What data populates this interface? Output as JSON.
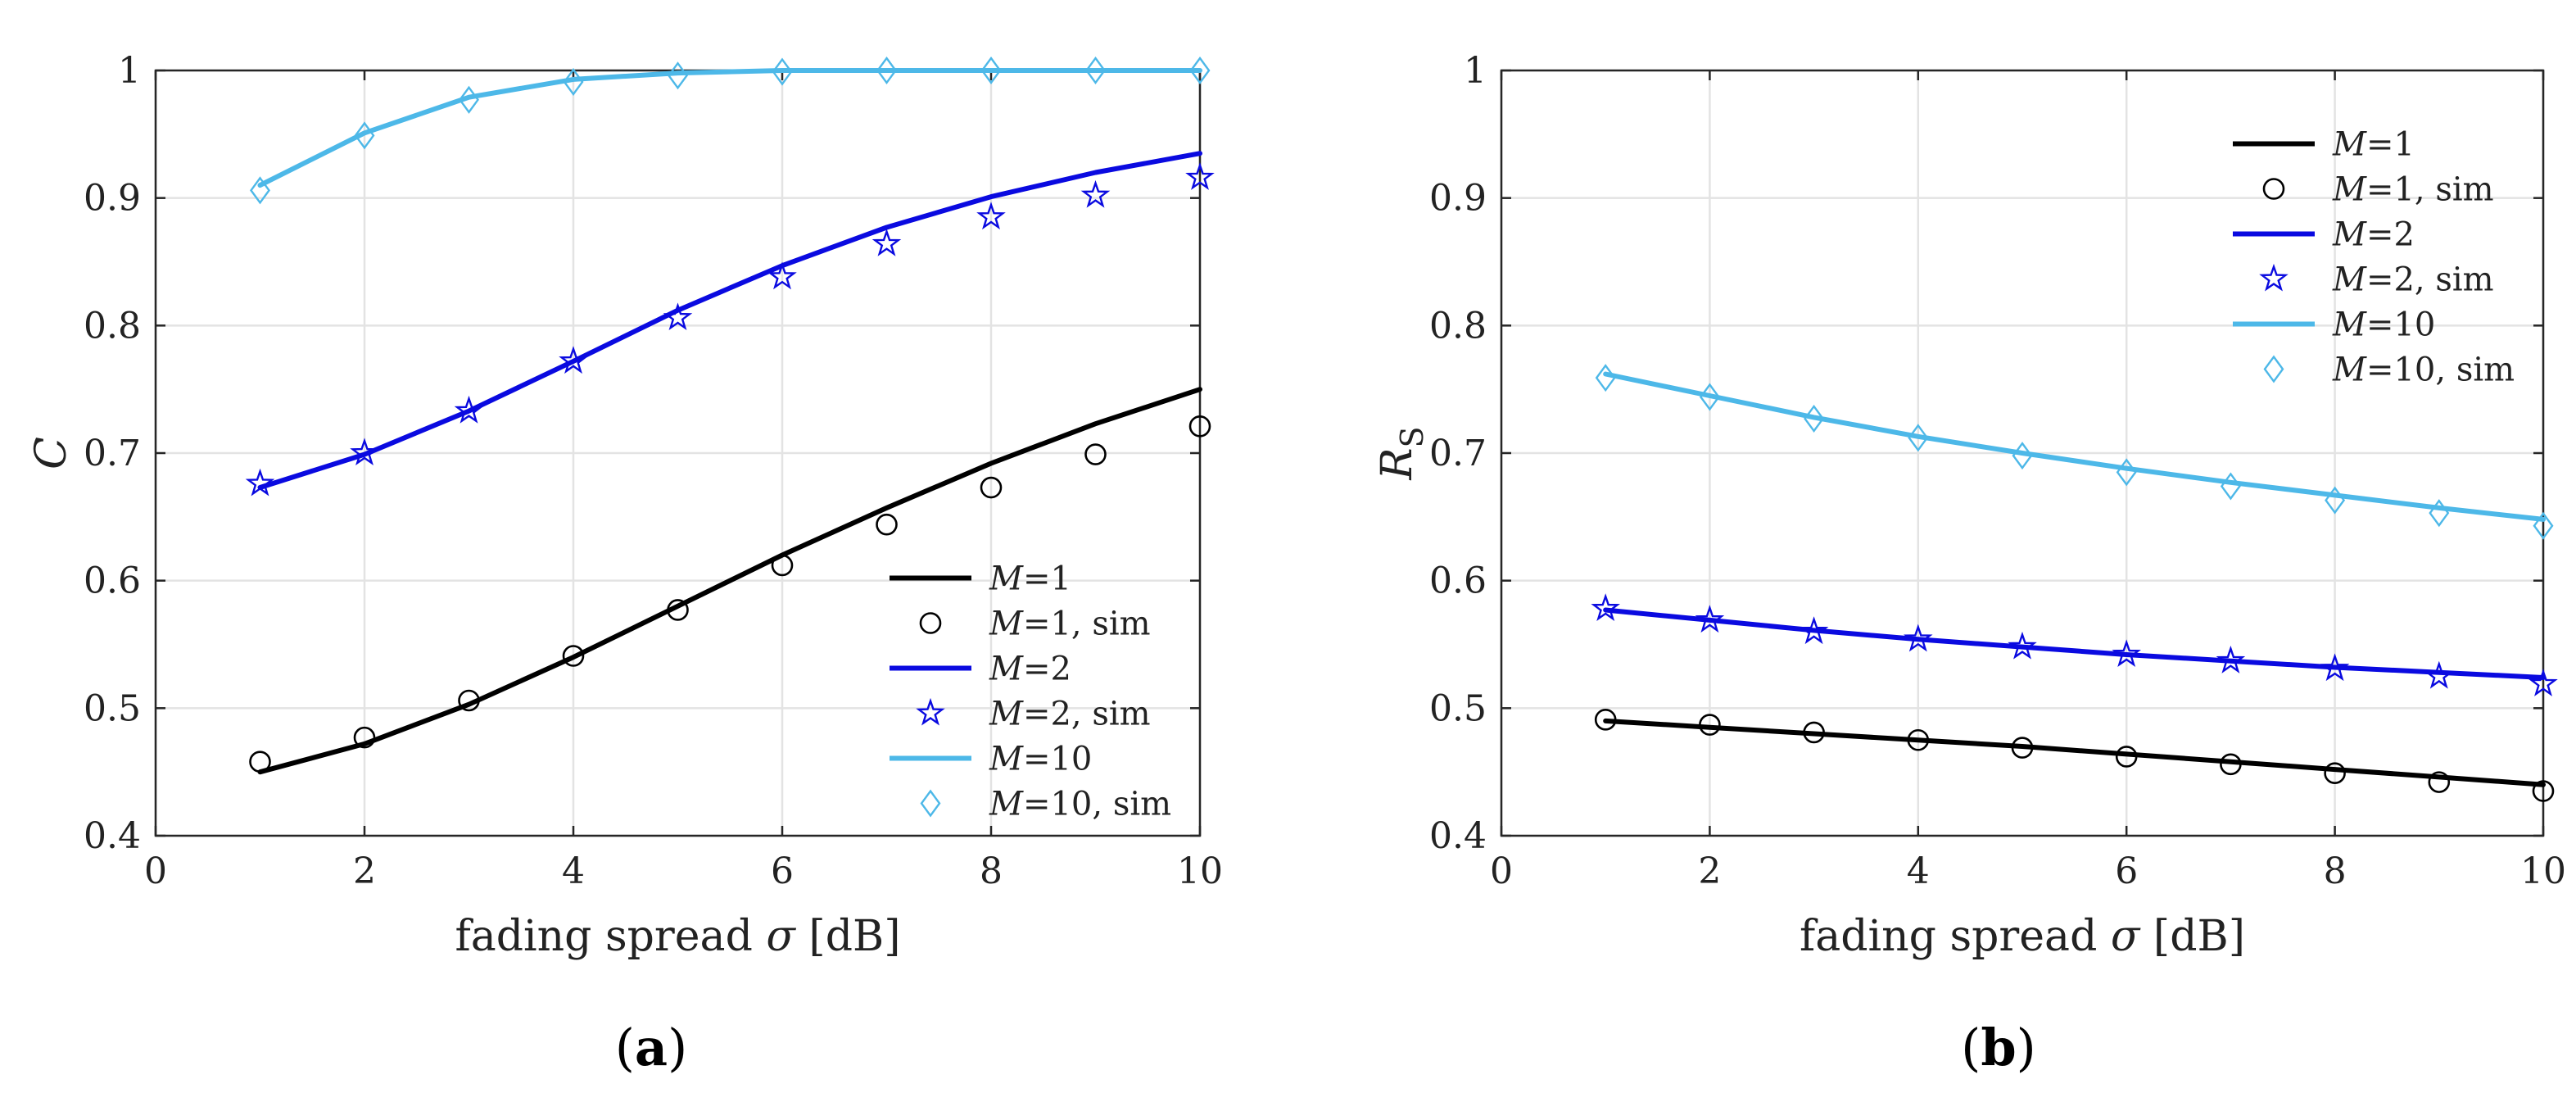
{
  "chart_data": [
    {
      "type": "line",
      "panel_label": "(a)",
      "xlabel": "fading spread σ [dB]",
      "ylabel": "C",
      "ylabel_sub": "",
      "xlim": [
        0,
        10
      ],
      "ylim": [
        0.4,
        1
      ],
      "xticks": [
        0,
        2,
        4,
        6,
        8,
        10
      ],
      "yticks": [
        0.4,
        0.5,
        0.6,
        0.7,
        0.8,
        0.9,
        1
      ],
      "ytick_labels": [
        "0.4",
        "0.5",
        "0.6",
        "0.7",
        "0.8",
        "0.9",
        "1"
      ],
      "grid": true,
      "legend_position": "bottom-right",
      "x": [
        1,
        2,
        3,
        4,
        5,
        6,
        7,
        8,
        9,
        10
      ],
      "series": [
        {
          "name": "M=1",
          "var": "M",
          "suffix": "=1",
          "kind": "line",
          "color": "#000000",
          "values": [
            0.45,
            0.472,
            0.503,
            0.54,
            0.58,
            0.62,
            0.657,
            0.692,
            0.723,
            0.75
          ]
        },
        {
          "name": "M=1, sim",
          "var": "M",
          "suffix": "=1, sim",
          "kind": "marker",
          "marker": "circle",
          "color": "#000000",
          "values": [
            0.458,
            0.477,
            0.506,
            0.541,
            0.577,
            0.612,
            0.644,
            0.673,
            0.699,
            0.721
          ]
        },
        {
          "name": "M=2",
          "var": "M",
          "suffix": "=2",
          "kind": "line",
          "color": "#0a0ae0",
          "values": [
            0.673,
            0.699,
            0.733,
            0.772,
            0.812,
            0.847,
            0.877,
            0.901,
            0.92,
            0.935
          ]
        },
        {
          "name": "M=2, sim",
          "var": "M",
          "suffix": "=2, sim",
          "kind": "marker",
          "marker": "star",
          "color": "#0a0ae0",
          "values": [
            0.676,
            0.7,
            0.733,
            0.772,
            0.806,
            0.838,
            0.864,
            0.885,
            0.902,
            0.916
          ]
        },
        {
          "name": "M=10",
          "var": "M",
          "suffix": "=10",
          "kind": "line",
          "color": "#4db8e8",
          "values": [
            0.91,
            0.951,
            0.979,
            0.993,
            0.998,
            1.0,
            1.0,
            1.0,
            1.0,
            1.0
          ]
        },
        {
          "name": "M=10, sim",
          "var": "M",
          "suffix": "=10, sim",
          "kind": "marker",
          "marker": "diamond",
          "color": "#4db8e8",
          "values": [
            0.906,
            0.949,
            0.977,
            0.991,
            0.996,
            0.999,
            1.0,
            1.0,
            1.0,
            1.0
          ]
        }
      ]
    },
    {
      "type": "line",
      "panel_label": "(b)",
      "xlabel": "fading spread σ [dB]",
      "ylabel": "R",
      "ylabel_sub": "S",
      "xlim": [
        0,
        10
      ],
      "ylim": [
        0.4,
        1
      ],
      "xticks": [
        0,
        2,
        4,
        6,
        8,
        10
      ],
      "yticks": [
        0.4,
        0.5,
        0.6,
        0.7,
        0.8,
        0.9,
        1
      ],
      "ytick_labels": [
        "0.4",
        "0.5",
        "0.6",
        "0.7",
        "0.8",
        "0.9",
        "1"
      ],
      "grid": true,
      "legend_position": "top-right",
      "x": [
        1,
        2,
        3,
        4,
        5,
        6,
        7,
        8,
        9,
        10
      ],
      "series": [
        {
          "name": "M=1",
          "var": "M",
          "suffix": "=1",
          "kind": "line",
          "color": "#000000",
          "values": [
            0.49,
            0.485,
            0.48,
            0.475,
            0.47,
            0.464,
            0.458,
            0.452,
            0.446,
            0.44
          ]
        },
        {
          "name": "M=1, sim",
          "var": "M",
          "suffix": "=1, sim",
          "kind": "marker",
          "marker": "circle",
          "color": "#000000",
          "values": [
            0.491,
            0.487,
            0.481,
            0.475,
            0.469,
            0.462,
            0.456,
            0.449,
            0.442,
            0.435
          ]
        },
        {
          "name": "M=2",
          "var": "M",
          "suffix": "=2",
          "kind": "line",
          "color": "#0a0ae0",
          "values": [
            0.577,
            0.569,
            0.561,
            0.554,
            0.548,
            0.542,
            0.537,
            0.532,
            0.528,
            0.524
          ]
        },
        {
          "name": "M=2, sim",
          "var": "M",
          "suffix": "=2, sim",
          "kind": "marker",
          "marker": "star",
          "color": "#0a0ae0",
          "values": [
            0.578,
            0.569,
            0.56,
            0.554,
            0.548,
            0.542,
            0.537,
            0.531,
            0.525,
            0.519
          ]
        },
        {
          "name": "M=10",
          "var": "M",
          "suffix": "=10",
          "kind": "line",
          "color": "#4db8e8",
          "values": [
            0.762,
            0.745,
            0.728,
            0.713,
            0.7,
            0.688,
            0.677,
            0.667,
            0.657,
            0.648
          ]
        },
        {
          "name": "M=10, sim",
          "var": "M",
          "suffix": "=10, sim",
          "kind": "marker",
          "marker": "diamond",
          "color": "#4db8e8",
          "values": [
            0.759,
            0.744,
            0.727,
            0.712,
            0.698,
            0.685,
            0.674,
            0.663,
            0.653,
            0.643
          ]
        }
      ]
    }
  ]
}
